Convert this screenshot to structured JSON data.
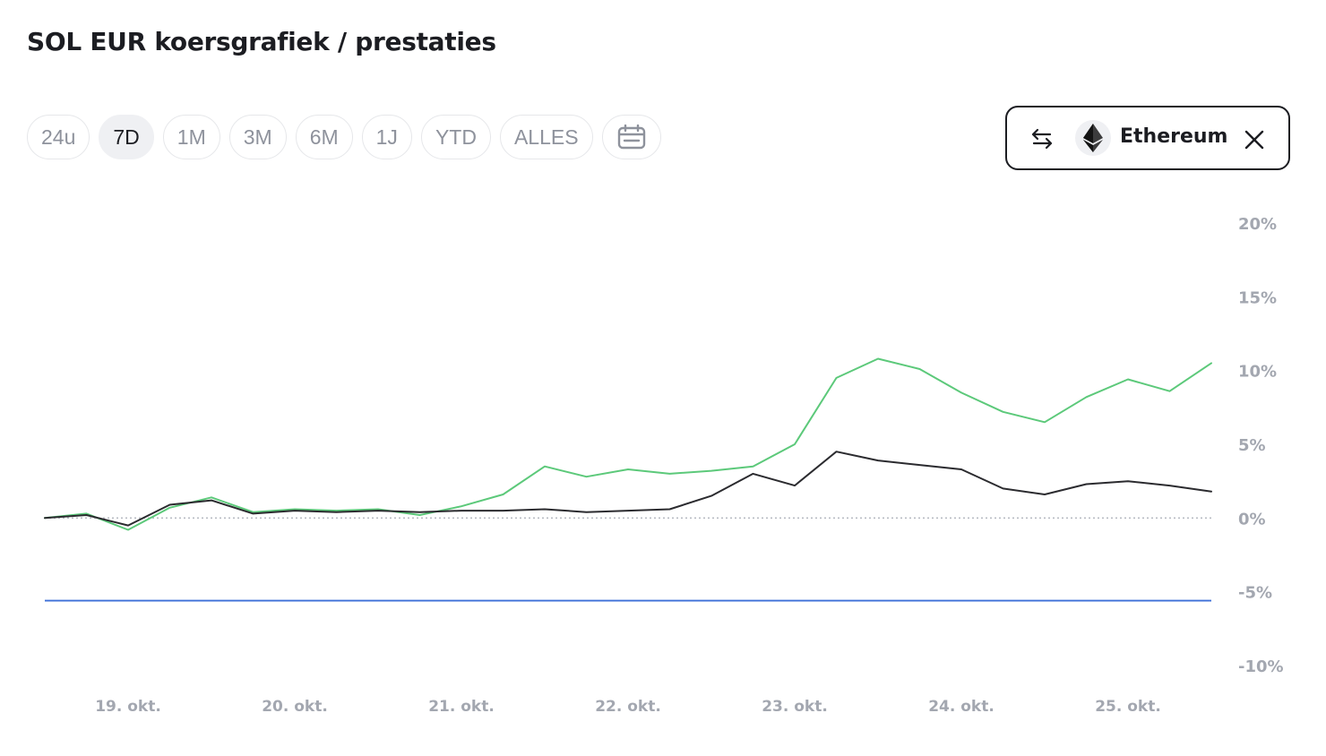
{
  "page": {
    "title": "SOL EUR koersgrafiek / prestaties"
  },
  "ranges": [
    {
      "label": "24u",
      "active": false
    },
    {
      "label": "7D",
      "active": true
    },
    {
      "label": "1M",
      "active": false
    },
    {
      "label": "3M",
      "active": false
    },
    {
      "label": "6M",
      "active": false
    },
    {
      "label": "1J",
      "active": false
    },
    {
      "label": "YTD",
      "active": false
    },
    {
      "label": "ALLES",
      "active": false
    }
  ],
  "icons": {
    "calendar": "calendar-icon",
    "swap": "swap-arrows-icon",
    "coin": "ethereum-icon",
    "close": "close-icon"
  },
  "compare": {
    "name": "Ethereum"
  },
  "colors": {
    "sol_line": "#5cc97a",
    "eth_line": "#2b2b2f",
    "low_marker": "#3d6fd8",
    "zero_line": "#b9bcc3"
  },
  "chart_data": {
    "type": "line",
    "title": "",
    "xlabel": "",
    "ylabel": "",
    "ylim": [
      -10,
      20
    ],
    "yticks": [
      20,
      15,
      10,
      5,
      0,
      -5,
      -10
    ],
    "ytick_labels": [
      "20%",
      "15%",
      "10%",
      "5%",
      "0%",
      "-5%",
      "-10%"
    ],
    "x_categories": [
      "19. okt.",
      "20. okt.",
      "21. okt.",
      "22. okt.",
      "23. okt.",
      "24. okt.",
      "25. okt."
    ],
    "x": [
      0,
      0.25,
      0.5,
      0.75,
      1.0,
      1.25,
      1.5,
      1.75,
      2.0,
      2.25,
      2.5,
      2.75,
      3.0,
      3.25,
      3.5,
      3.75,
      4.0,
      4.25,
      4.5,
      4.75,
      5.0,
      5.25,
      5.5,
      5.75,
      6.0,
      6.25,
      6.5,
      6.75,
      7.0
    ],
    "reference_lines": [
      {
        "value": 0,
        "style": "dotted"
      },
      {
        "value": -5.6,
        "style": "solid"
      }
    ],
    "series": [
      {
        "values": [
          0,
          0.3,
          -0.8,
          0.7,
          1.4,
          0.4,
          0.6,
          0.5,
          0.6,
          0.2,
          0.8,
          1.6,
          3.5,
          2.8,
          3.3,
          3.0,
          3.2,
          3.5,
          5.0,
          9.5,
          10.8,
          10.1,
          8.5,
          7.2,
          6.5,
          8.2,
          9.4,
          8.6,
          10.5
        ]
      },
      {
        "values": [
          0,
          0.2,
          -0.5,
          0.9,
          1.2,
          0.3,
          0.5,
          0.4,
          0.5,
          0.4,
          0.5,
          0.5,
          0.6,
          0.4,
          0.5,
          0.6,
          1.5,
          3.0,
          2.2,
          4.5,
          3.9,
          3.6,
          3.3,
          2.0,
          1.6,
          2.3,
          2.5,
          2.2,
          1.8
        ]
      }
    ]
  }
}
